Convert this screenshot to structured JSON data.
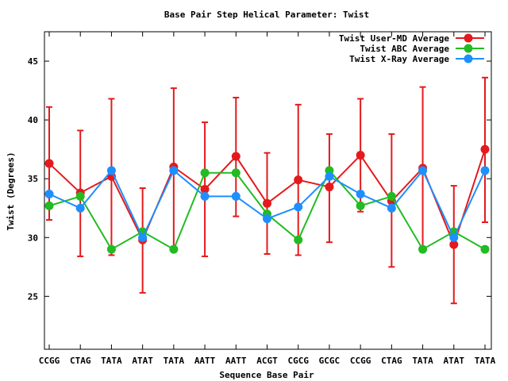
{
  "chart_data": {
    "type": "line",
    "title": "Base Pair Step Helical Parameter: Twist",
    "xlabel": "Sequence Base Pair",
    "ylabel": "Twist (Degrees)",
    "categories": [
      "CCGG",
      "CTAG",
      "TATA",
      "ATAT",
      "TATA",
      "AATT",
      "AATT",
      "ACGT",
      "CGCG",
      "GCGC",
      "CCGG",
      "CTAG",
      "TATA",
      "ATAT",
      "TATA"
    ],
    "ylim": [
      20.5,
      47.5
    ],
    "yticks": [
      25,
      30,
      35,
      40,
      45
    ],
    "grid": false,
    "legend_position": "top-right",
    "series": [
      {
        "name": "Twist User-MD Average",
        "color": "#e41a1c",
        "values": [
          36.3,
          33.8,
          35.2,
          29.8,
          36.0,
          34.1,
          36.9,
          32.9,
          34.9,
          34.3,
          37.0,
          33.1,
          35.9,
          29.4,
          37.5
        ],
        "error_low": [
          31.5,
          28.4,
          28.5,
          25.3,
          29.2,
          28.4,
          31.8,
          28.6,
          28.5,
          29.6,
          32.2,
          27.5,
          29.0,
          24.4,
          31.3
        ],
        "error_high": [
          41.1,
          39.1,
          41.8,
          34.2,
          42.7,
          39.8,
          41.9,
          37.2,
          41.3,
          38.8,
          41.8,
          38.8,
          42.8,
          34.4,
          43.6
        ]
      },
      {
        "name": "Twist ABC Average",
        "color": "#22bb22",
        "values": [
          32.7,
          33.5,
          29.0,
          30.5,
          29.0,
          35.5,
          35.5,
          32.0,
          29.8,
          35.7,
          32.7,
          33.5,
          29.0,
          30.5,
          29.0
        ]
      },
      {
        "name": "Twist X-Ray Average",
        "color": "#1e8fff",
        "values": [
          33.7,
          32.5,
          35.7,
          30.0,
          35.7,
          33.5,
          33.5,
          31.6,
          32.6,
          35.2,
          33.7,
          32.5,
          35.7,
          30.0,
          35.7
        ]
      }
    ]
  }
}
